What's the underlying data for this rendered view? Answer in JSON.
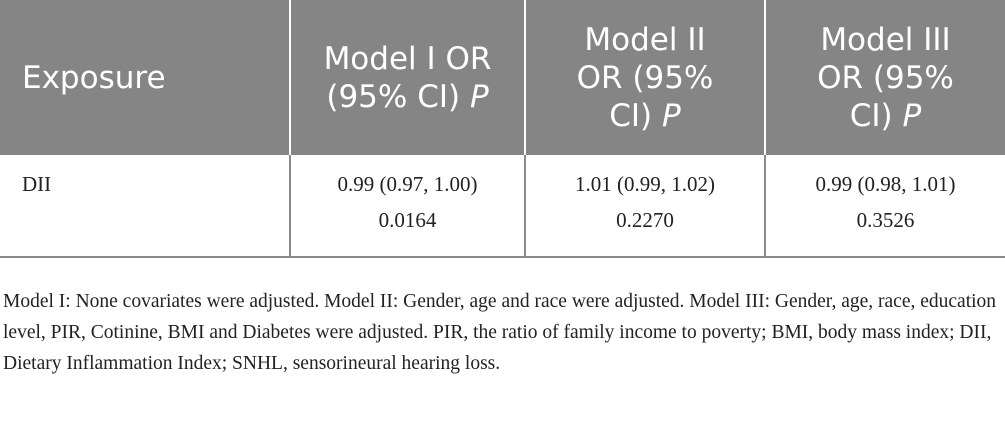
{
  "table": {
    "headers": {
      "exposure": "Exposure",
      "model1_line1": "Model I OR",
      "model1_line2": "(95% CI) ",
      "model1_p": "P",
      "model2_line1": "Model II",
      "model2_line2": "OR (95%",
      "model2_line3": "CI) ",
      "model2_p": "P",
      "model3_line1": "Model III",
      "model3_line2": "OR (95%",
      "model3_line3": "CI) ",
      "model3_p": "P"
    },
    "rows": [
      {
        "exposure": "DII",
        "model1_or": "0.99 (0.97, 1.00)",
        "model1_p": "0.0164",
        "model2_or": "1.01 (0.99, 1.02)",
        "model2_p": "0.2270",
        "model3_or": "0.99 (0.98, 1.01)",
        "model3_p": "0.3526"
      }
    ]
  },
  "footnote": "Model I: None covariates were adjusted. Model II: Gender, age and race were adjusted. Model III: Gender, age, race, education level, PIR, Cotinine, BMI and Diabetes were adjusted. PIR, the ratio of family income to poverty; BMI, body mass index; DII, Dietary Inflammation Index; SNHL, sensorineural hearing loss.",
  "colors": {
    "header_bg": "#858585",
    "header_text": "#ffffff",
    "rule": "#8a8a8a"
  }
}
